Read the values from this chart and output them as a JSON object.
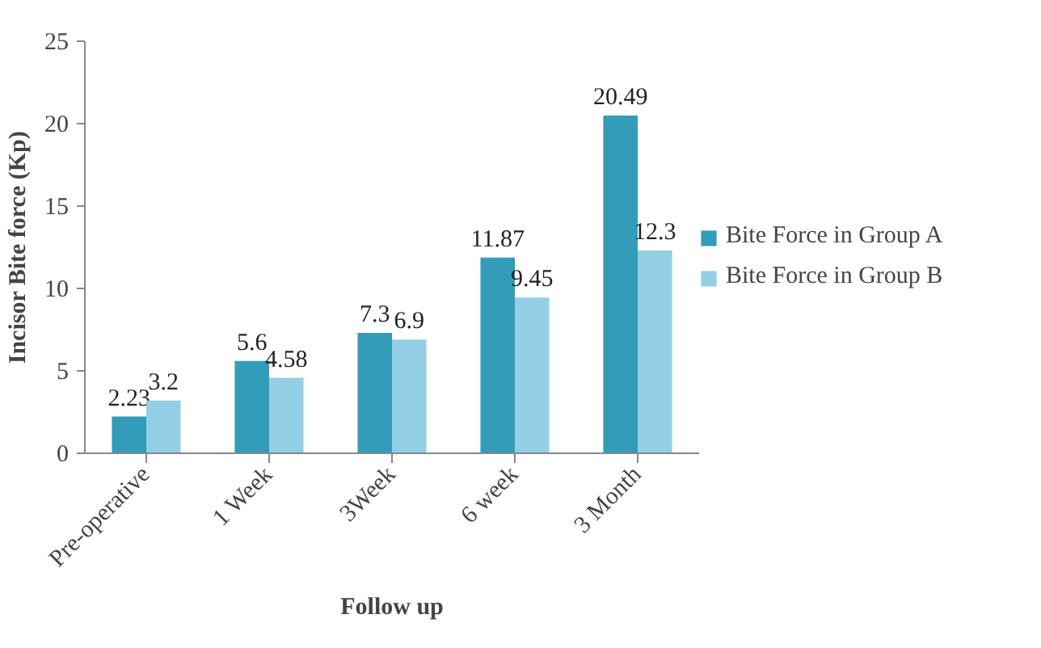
{
  "chart_data": {
    "type": "bar",
    "xlabel": "Follow up",
    "ylabel": "Incisor Bite force (Kp)",
    "categories": [
      "Pre-operative",
      "1 Week",
      "3Week",
      "6 week",
      "3 Month"
    ],
    "series": [
      {
        "name": "Bite Force in Group A",
        "color": "#339cb8",
        "values": [
          2.23,
          5.6,
          7.3,
          11.87,
          20.49
        ]
      },
      {
        "name": "Bite Force in Group B",
        "color": "#93cfe4",
        "values": [
          3.2,
          4.58,
          6.9,
          9.45,
          12.3
        ]
      }
    ],
    "ylim": [
      0,
      25
    ],
    "yticks": [
      0,
      5,
      10,
      15,
      20,
      25
    ],
    "grid": false,
    "legend": "right",
    "data_labels": true
  }
}
